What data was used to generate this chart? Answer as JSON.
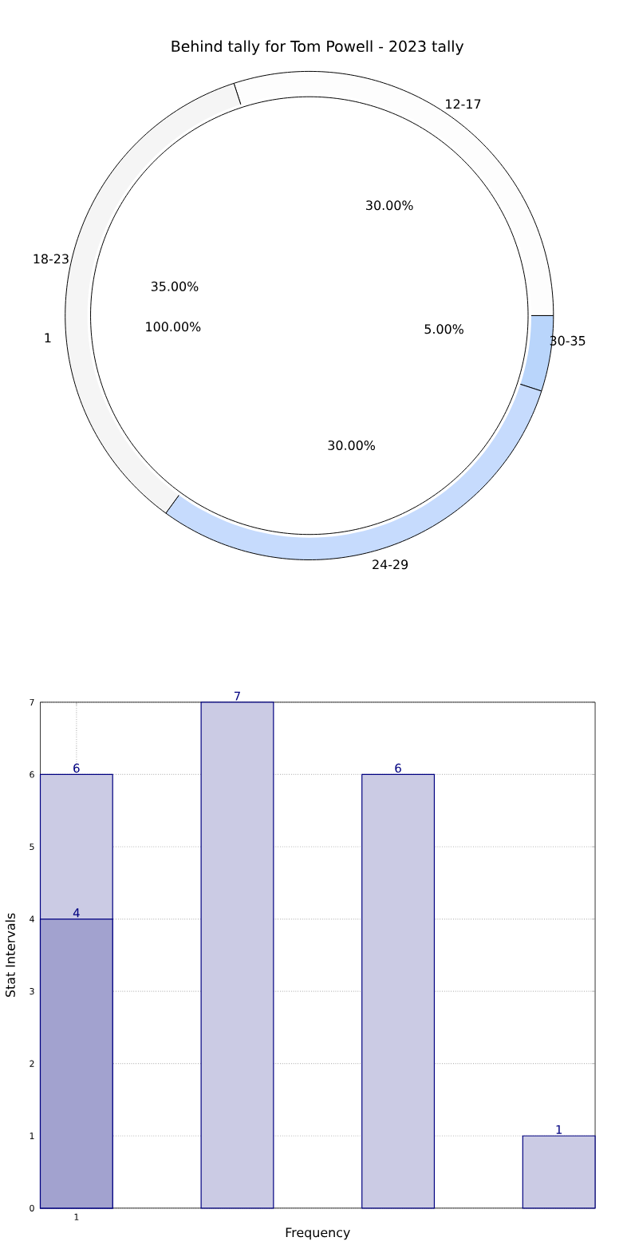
{
  "chart_data": [
    {
      "type": "pie",
      "title": "Behind tally for Tom Powell - 2023 tally",
      "categories": [
        "12-17",
        "30-35",
        "24-29",
        "18-23"
      ],
      "values": [
        30,
        5,
        30,
        35
      ],
      "colors": [
        "#fdfdfd",
        "#b9d5fb",
        "#c6dbfd",
        "#f5f5f5"
      ],
      "value_labels": [
        "30.00%",
        "5.00%",
        "30.00%",
        "35.00%"
      ]
    },
    {
      "type": "pie",
      "categories": [
        "1"
      ],
      "values": [
        100
      ],
      "colors": [
        "#ffffff"
      ],
      "value_labels": [
        "100.00%"
      ]
    },
    {
      "type": "bar",
      "categories": [
        "1",
        null,
        null,
        null
      ],
      "xlabel": "Frequency",
      "ylabel": "Stat Intervals",
      "ylim": [
        0,
        7
      ],
      "yticks": [
        0,
        1,
        2,
        3,
        4,
        5,
        6,
        7
      ],
      "grid": true,
      "data_labels": true,
      "series": [
        {
          "color": "#cbcbe4",
          "values": [
            6,
            7,
            6,
            1
          ]
        },
        {
          "color": "#a2a2cf",
          "values": [
            4,
            null,
            null,
            null
          ]
        }
      ]
    }
  ]
}
